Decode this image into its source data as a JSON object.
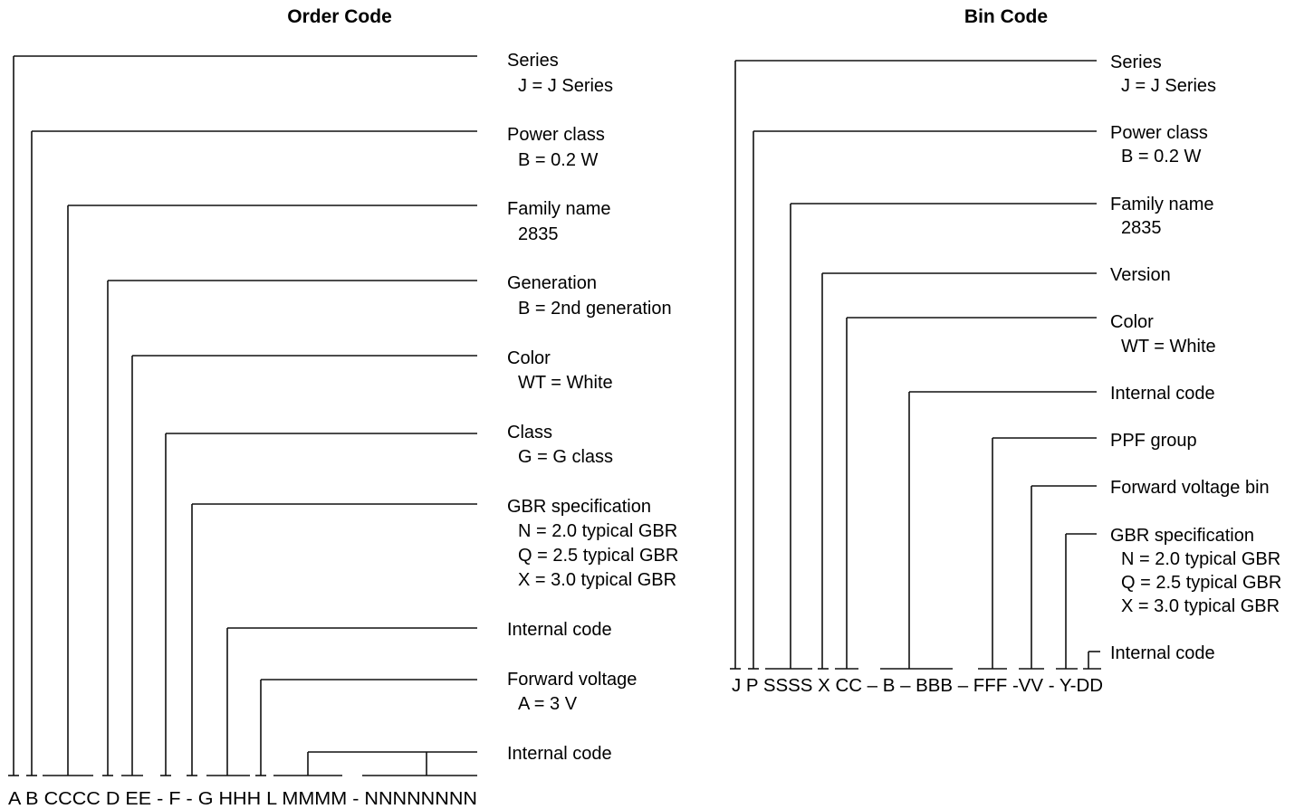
{
  "order_code": {
    "title": "Order Code",
    "code_string": "A B CCCC D EE - F - G HHH L MMMM - NNNNNNNN",
    "fields": [
      {
        "lines": [
          "Series",
          "J = J Series"
        ]
      },
      {
        "lines": [
          "Power class",
          "B = 0.2 W"
        ]
      },
      {
        "lines": [
          "Family name",
          "2835"
        ]
      },
      {
        "lines": [
          "Generation",
          "B = 2nd generation"
        ]
      },
      {
        "lines": [
          "Color",
          "WT = White"
        ]
      },
      {
        "lines": [
          "Class",
          "G = G class"
        ]
      },
      {
        "lines": [
          "GBR specification",
          "N = 2.0 typical GBR",
          "Q = 2.5 typical GBR",
          "X = 3.0 typical GBR"
        ]
      },
      {
        "lines": [
          "Internal code"
        ]
      },
      {
        "lines": [
          "Forward voltage",
          "A = 3 V"
        ]
      },
      {
        "lines": [
          "Internal code"
        ]
      }
    ]
  },
  "bin_code": {
    "title": "Bin Code",
    "code_string": "J P SSSS X CC – B – BBB – FFF -VV - Y-DD",
    "fields": [
      {
        "lines": [
          "Series",
          "J = J Series"
        ]
      },
      {
        "lines": [
          "Power class",
          "B = 0.2 W"
        ]
      },
      {
        "lines": [
          "Family name",
          "2835"
        ]
      },
      {
        "lines": [
          "Version"
        ]
      },
      {
        "lines": [
          "Color",
          "WT = White"
        ]
      },
      {
        "lines": [
          "Internal code"
        ]
      },
      {
        "lines": [
          "PPF group"
        ]
      },
      {
        "lines": [
          "Forward voltage bin"
        ]
      },
      {
        "lines": [
          "GBR specification",
          "N = 2.0 typical GBR",
          "Q = 2.5 typical GBR",
          "X = 3.0 typical GBR"
        ]
      },
      {
        "lines": [
          "Internal code"
        ]
      }
    ]
  }
}
